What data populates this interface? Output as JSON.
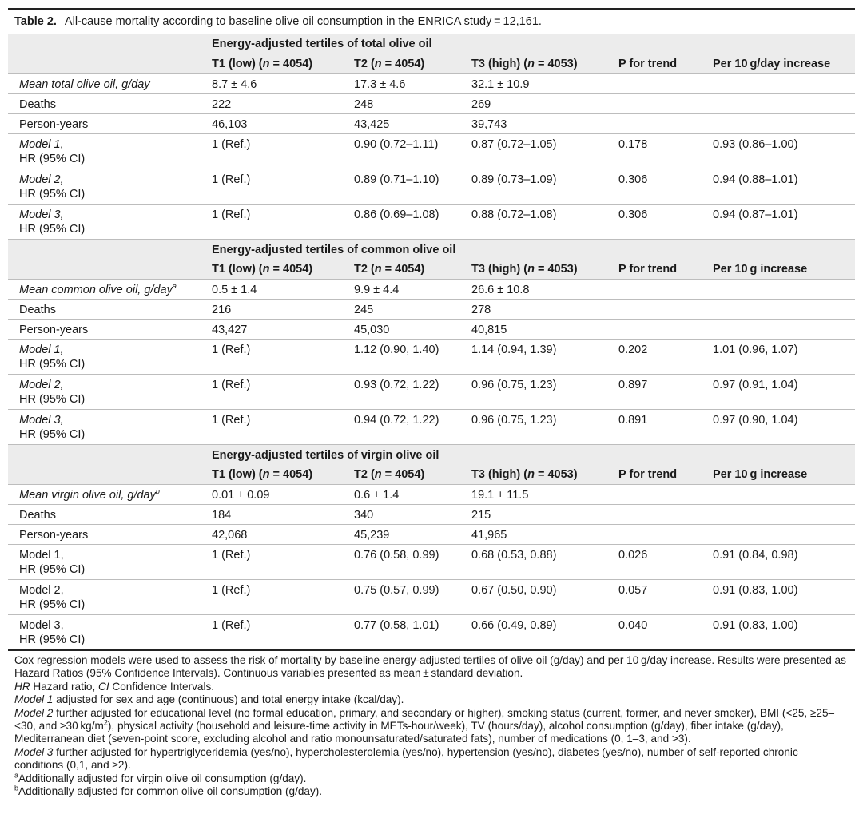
{
  "caption": {
    "label": "Table 2.",
    "text": "All-cause mortality according to baseline olive oil consumption in the ENRICA study = 12,161."
  },
  "sections": [
    {
      "title": "Energy-adjusted tertiles of total olive oil",
      "headers": [
        "T1 (low) (",
        "n",
        " = 4054)",
        "T2 (",
        "n",
        " = 4054)",
        "T3 (high) (",
        "n",
        " = 4053)",
        "P for trend",
        "Per 10 g/day increase"
      ],
      "rows": [
        {
          "label": "Mean total olive oil, g/day",
          "label2": "",
          "sup": "",
          "italic": true,
          "c1": "8.7 ± 4.6",
          "c2": "17.3 ± 4.6",
          "c3": "32.1 ± 10.9",
          "p": "",
          "per": ""
        },
        {
          "label": "Deaths",
          "label2": "",
          "sup": "",
          "italic": false,
          "c1": "222",
          "c2": "248",
          "c3": "269",
          "p": "",
          "per": ""
        },
        {
          "label": "Person-years",
          "label2": "",
          "sup": "",
          "italic": false,
          "c1": "46,103",
          "c2": "43,425",
          "c3": "39,743",
          "p": "",
          "per": ""
        },
        {
          "label": "Model 1,",
          "label2": "HR (95% CI)",
          "sup": "",
          "italic": true,
          "c1": "1 (Ref.)",
          "c2": "0.90 (0.72–1.11)",
          "c3": "0.87 (0.72–1.05)",
          "p": "0.178",
          "per": "0.93 (0.86–1.00)"
        },
        {
          "label": "Model 2,",
          "label2": "HR (95% CI)",
          "sup": "",
          "italic": true,
          "c1": "1 (Ref.)",
          "c2": "0.89 (0.71–1.10)",
          "c3": "0.89 (0.73–1.09)",
          "p": "0.306",
          "per": "0.94 (0.88–1.01)"
        },
        {
          "label": "Model 3,",
          "label2": "HR (95% CI)",
          "sup": "",
          "italic": true,
          "c1": "1 (Ref.)",
          "c2": "0.86 (0.69–1.08)",
          "c3": "0.88 (0.72–1.08)",
          "p": "0.306",
          "per": "0.94 (0.87–1.01)"
        }
      ]
    },
    {
      "title": "Energy-adjusted tertiles of common olive oil",
      "headers": [
        "T1 (low) (",
        "n",
        " = 4054)",
        "T2 (",
        "n",
        " = 4054)",
        "T3 (high) (",
        "n",
        " = 4053)",
        "P for trend",
        "Per 10 g increase"
      ],
      "rows": [
        {
          "label": "Mean common olive oil, g/day",
          "label2": "",
          "sup": "a",
          "italic": true,
          "c1": "0.5 ± 1.4",
          "c2": "9.9 ± 4.4",
          "c3": "26.6 ± 10.8",
          "p": "",
          "per": ""
        },
        {
          "label": "Deaths",
          "label2": "",
          "sup": "",
          "italic": false,
          "c1": "216",
          "c2": "245",
          "c3": "278",
          "p": "",
          "per": ""
        },
        {
          "label": "Person-years",
          "label2": "",
          "sup": "",
          "italic": false,
          "c1": "43,427",
          "c2": "45,030",
          "c3": "40,815",
          "p": "",
          "per": ""
        },
        {
          "label": "Model 1,",
          "label2": "HR (95% CI)",
          "sup": "",
          "italic": true,
          "c1": "1 (Ref.)",
          "c2": "1.12 (0.90, 1.40)",
          "c3": "1.14 (0.94, 1.39)",
          "p": "0.202",
          "per": "1.01 (0.96, 1.07)"
        },
        {
          "label": "Model 2,",
          "label2": "HR (95% CI)",
          "sup": "",
          "italic": true,
          "c1": "1 (Ref.)",
          "c2": "0.93 (0.72, 1.22)",
          "c3": "0.96 (0.75, 1.23)",
          "p": "0.897",
          "per": "0.97 (0.91, 1.04)"
        },
        {
          "label": "Model 3,",
          "label2": "HR (95% CI)",
          "sup": "",
          "italic": true,
          "c1": "1 (Ref.)",
          "c2": "0.94 (0.72, 1.22)",
          "c3": "0.96 (0.75, 1.23)",
          "p": "0.891",
          "per": "0.97 (0.90, 1.04)"
        }
      ]
    },
    {
      "title": "Energy-adjusted tertiles of virgin olive oil",
      "headers": [
        "T1 (low) (",
        "n",
        " = 4054)",
        "T2 (",
        "n",
        " = 4054)",
        "T3 (high) (",
        "n",
        " = 4053)",
        "P for trend",
        "Per 10 g increase"
      ],
      "rows": [
        {
          "label": "Mean virgin olive oil, g/day",
          "label2": "",
          "sup": "b",
          "italic": true,
          "c1": "0.01 ± 0.09",
          "c2": "0.6 ± 1.4",
          "c3": "19.1 ± 11.5",
          "p": "",
          "per": ""
        },
        {
          "label": "Deaths",
          "label2": "",
          "sup": "",
          "italic": false,
          "c1": "184",
          "c2": "340",
          "c3": "215",
          "p": "",
          "per": ""
        },
        {
          "label": "Person-years",
          "label2": "",
          "sup": "",
          "italic": false,
          "c1": "42,068",
          "c2": "45,239",
          "c3": "41,965",
          "p": "",
          "per": ""
        },
        {
          "label": "Model 1,",
          "label2": "HR (95% CI)",
          "sup": "",
          "italic": false,
          "c1": "1 (Ref.)",
          "c2": "0.76 (0.58, 0.99)",
          "c3": "0.68 (0.53, 0.88)",
          "p": "0.026",
          "per": "0.91 (0.84, 0.98)"
        },
        {
          "label": "Model 2,",
          "label2": "HR (95% CI)",
          "sup": "",
          "italic": false,
          "c1": "1 (Ref.)",
          "c2": "0.75 (0.57, 0.99)",
          "c3": "0.67 (0.50, 0.90)",
          "p": "0.057",
          "per": "0.91 (0.83, 1.00)"
        },
        {
          "label": "Model 3,",
          "label2": "HR (95% CI)",
          "sup": "",
          "italic": false,
          "c1": "1 (Ref.)",
          "c2": "0.77 (0.58, 1.01)",
          "c3": "0.66 (0.49, 0.89)",
          "p": "0.040",
          "per": "0.91 (0.83, 1.00)"
        }
      ]
    }
  ],
  "footnotes": {
    "f1": "Cox regression models were used to assess the risk of mortality by baseline energy-adjusted tertiles of olive oil (g/day) and per 10 g/day increase. Results were presented as Hazard Ratios (95% Confidence Intervals). Continuous variables presented as mean ± standard deviation.",
    "f2_a": "HR",
    "f2_b": " Hazard ratio, ",
    "f2_c": "CI",
    "f2_d": " Confidence Intervals.",
    "f3_a": "Model 1",
    "f3_b": " adjusted for sex and age (continuous) and total energy intake (kcal/day).",
    "f4_a": "Model 2",
    "f4_b": " further adjusted for educational level (no formal education, primary, and secondary or higher), smoking status (current, former, and never smoker), BMI (<25, ≥25–<30, and ≥30 kg/m",
    "f4_sup": "2",
    "f4_c": "), physical activity (household and leisure-time activity in METs-hour/week), TV (hours/day), alcohol consumption (g/day), fiber intake (g/day), Mediterranean diet (seven-point score, excluding alcohol and ratio monounsaturated/saturated fats), number of medications (0, 1–3, and >3).",
    "f5_a": "Model 3",
    "f5_b": " further adjusted for hypertriglyceridemia (yes/no), hypercholesterolemia (yes/no), hypertension (yes/no), diabetes (yes/no), number of self-reported chronic conditions (0,1, and ≥2).",
    "f6_sup": "a",
    "f6": "Additionally adjusted for virgin olive oil consumption (g/day).",
    "f7_sup": "b",
    "f7": "Additionally adjusted for common olive oil consumption (g/day)."
  }
}
